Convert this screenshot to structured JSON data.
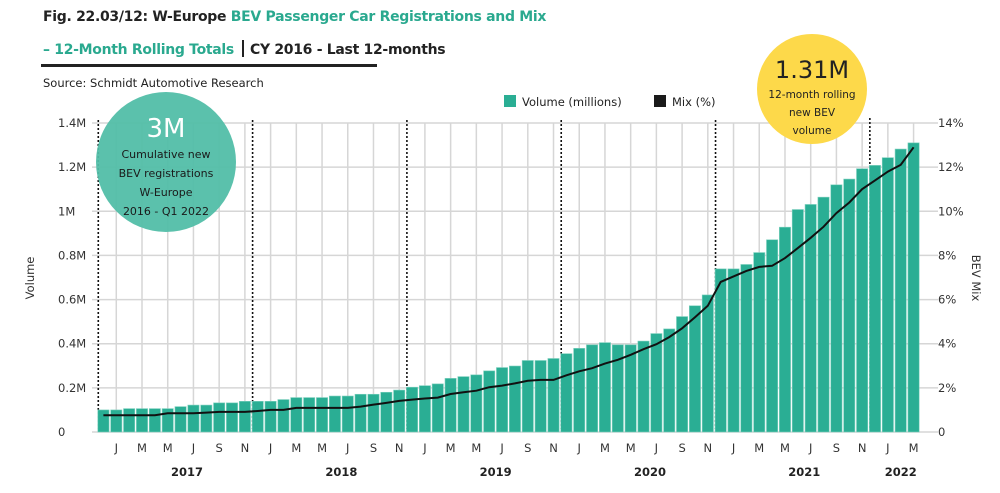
{
  "title": {
    "prefix": "Fig. 22.03/12: W-Europe ",
    "highlight": "BEV Passenger Car Registrations and Mix",
    "line2_highlight": "– 12-Month Rolling Totals",
    "line2_rest": "CY 2016 - Last 12-months"
  },
  "source": "Source: Schmidt Automotive Research",
  "callouts": {
    "cumulative": {
      "value": "3M",
      "lines": [
        "Cumulative new",
        "BEV registrations",
        "W-Europe",
        "2016 - Q1 2022"
      ]
    },
    "rolling": {
      "value": "1.31M",
      "lines": [
        "12-month rolling",
        "new BEV",
        "volume"
      ]
    }
  },
  "colors": {
    "bar": "#2aae94",
    "line": "#111111",
    "circle_green": "#52bea8",
    "circle_yellow": "#fdd94a",
    "grid": "#d6d6d6"
  },
  "chart_data": {
    "type": "bar",
    "title": "W-Europe BEV Passenger Car Registrations and Mix – 12-Month Rolling Totals",
    "ylabel": "Volume",
    "y2label": "BEV Mix",
    "ylim": [
      0,
      1.4
    ],
    "y2lim": [
      0,
      14
    ],
    "yticks": [
      "0",
      "0.2M",
      "0.4M",
      "0.6M",
      "0.8M",
      "1M",
      "1.2M",
      "1.4M"
    ],
    "y2ticks": [
      "0",
      "2%",
      "4%",
      "6%",
      "8%",
      "10%",
      "12%",
      "14%"
    ],
    "legend": [
      "Volume (millions)",
      "Mix (%)"
    ],
    "legend_position": "top-right",
    "grid": true,
    "month_labels": [
      "J",
      "M",
      "M",
      "J",
      "S",
      "N",
      "J",
      "M",
      "M",
      "J",
      "S",
      "N",
      "J",
      "M",
      "M",
      "J",
      "S",
      "N",
      "J",
      "M",
      "M",
      "J",
      "S",
      "N",
      "J",
      "M",
      "M",
      "J",
      "S",
      "N",
      "J",
      "M"
    ],
    "year_labels": [
      "2017",
      "2018",
      "2019",
      "2020",
      "2021",
      "2022"
    ],
    "x_range": "Dec 2016 - Mar 2022 (monthly)",
    "series": [
      {
        "name": "Volume (millions)",
        "type": "bar",
        "values": [
          0.1,
          0.1,
          0.106,
          0.106,
          0.106,
          0.106,
          0.115,
          0.122,
          0.122,
          0.132,
          0.132,
          0.139,
          0.139,
          0.139,
          0.147,
          0.156,
          0.156,
          0.156,
          0.163,
          0.163,
          0.171,
          0.171,
          0.18,
          0.19,
          0.203,
          0.21,
          0.218,
          0.243,
          0.251,
          0.259,
          0.277,
          0.292,
          0.299,
          0.324,
          0.324,
          0.333,
          0.355,
          0.379,
          0.395,
          0.405,
          0.395,
          0.395,
          0.412,
          0.446,
          0.467,
          0.523,
          0.572,
          0.621,
          0.739,
          0.739,
          0.759,
          0.813,
          0.871,
          0.928,
          1.008,
          1.031,
          1.064,
          1.12,
          1.146,
          1.193,
          1.208,
          1.243,
          1.282,
          1.31
        ]
      },
      {
        "name": "Mix (%)",
        "type": "line",
        "values": [
          0.76,
          0.76,
          0.76,
          0.76,
          0.76,
          0.85,
          0.85,
          0.85,
          0.88,
          0.91,
          0.91,
          0.91,
          0.95,
          1.0,
          1.0,
          1.09,
          1.09,
          1.09,
          1.09,
          1.09,
          1.15,
          1.24,
          1.32,
          1.41,
          1.47,
          1.52,
          1.56,
          1.72,
          1.8,
          1.87,
          2.03,
          2.1,
          2.2,
          2.32,
          2.36,
          2.36,
          2.57,
          2.75,
          2.89,
          3.1,
          3.27,
          3.5,
          3.75,
          3.98,
          4.3,
          4.7,
          5.2,
          5.72,
          6.8,
          7.05,
          7.3,
          7.48,
          7.53,
          7.88,
          8.33,
          8.8,
          9.3,
          9.92,
          10.4,
          11.0,
          11.4,
          11.8,
          12.1,
          12.9
        ]
      }
    ]
  }
}
